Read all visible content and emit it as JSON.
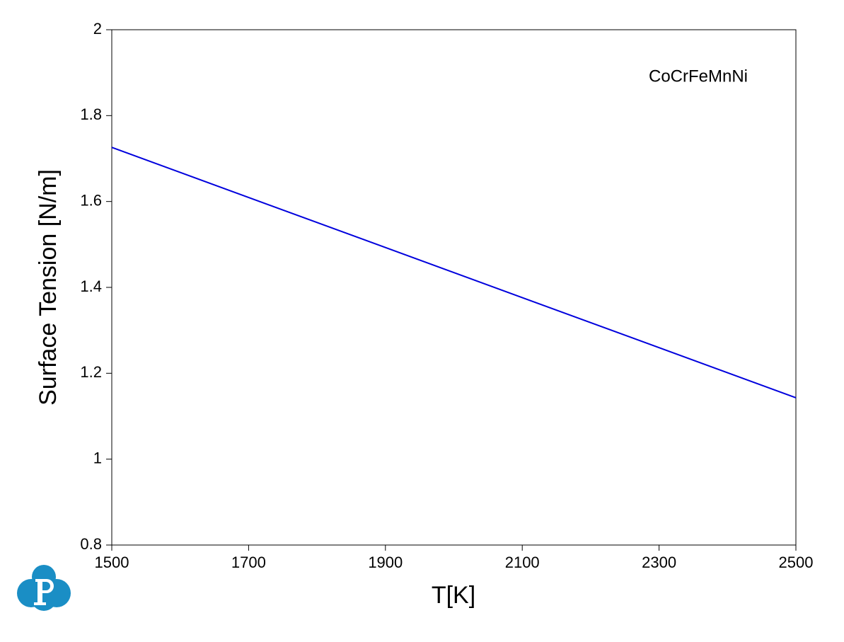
{
  "chart_data": {
    "type": "line",
    "x_label": "T[K]",
    "y_label": "Surface Tension [N/m]",
    "annotation": "CoCrFeMnNi",
    "x": [
      1500,
      2500
    ],
    "series": [
      {
        "color": "#0000dd",
        "values": [
          1.726,
          1.143
        ]
      }
    ],
    "xlim": [
      1500,
      2500
    ],
    "xticks": [
      1500,
      1700,
      1900,
      2100,
      2300,
      2500
    ],
    "ylim": [
      0.8,
      2
    ],
    "yticks": [
      0.8,
      1,
      1.2,
      1.4,
      1.6,
      1.8,
      2
    ],
    "grid": false
  }
}
